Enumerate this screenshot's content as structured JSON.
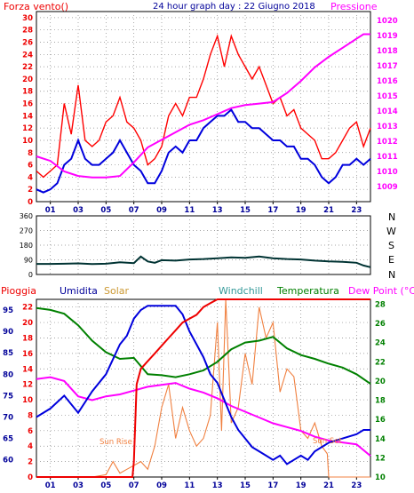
{
  "header": {
    "left_title": "Forza vento()",
    "center_title": "24 hour graph day : 22 Giugno 2018",
    "right_title": "Pressione"
  },
  "direction_labels": [
    "N",
    "W",
    "S",
    "E",
    "N"
  ],
  "bottom_labels": {
    "pioggia": "Pioggia",
    "umidita": "Umidita",
    "solar": "Solar",
    "windchill": "Windchill",
    "temperatura": "Temperatura",
    "dew_point": "Dew Point (°C)",
    "sun_rise": "Sun Rise",
    "sun_set": "Sun Set"
  },
  "colors": {
    "wind": "#ff0000",
    "wind_avg": "#0000dd",
    "pressure": "#ff00ff",
    "direction": "#003333",
    "humidity": "#0000dd",
    "solar": "#f08040",
    "rain": "#ee0000",
    "temperature": "#008000",
    "dew_point": "#ff00ff",
    "title_blue": "#000099",
    "grid": "#888888"
  },
  "chart_data": [
    {
      "type": "line",
      "name": "wind_and_pressure",
      "x_ticks": [
        "01",
        "03",
        "05",
        "07",
        "09",
        "11",
        "13",
        "15",
        "17",
        "19",
        "21",
        "23"
      ],
      "x_range": [
        0,
        24
      ],
      "left_axis": {
        "ylim": [
          0,
          31
        ],
        "ticks": [
          0,
          2,
          4,
          6,
          8,
          10,
          12,
          14,
          16,
          18,
          20,
          22,
          24,
          26,
          28,
          30
        ]
      },
      "right_axis": {
        "ylim": [
          1008,
          1020.6
        ],
        "ticks": [
          1009,
          1010,
          1011,
          1012,
          1013,
          1014,
          1015,
          1016,
          1017,
          1018,
          1019,
          1020
        ]
      },
      "series": [
        {
          "key": "wind_gust",
          "axis": "left",
          "x": [
            0,
            0.5,
            1,
            1.5,
            2,
            2.5,
            3,
            3.5,
            4,
            4.5,
            5,
            5.5,
            6,
            6.5,
            7,
            7.5,
            8,
            8.5,
            9,
            9.5,
            10,
            10.5,
            11,
            11.5,
            12,
            12.5,
            13,
            13.5,
            14,
            14.5,
            15,
            15.5,
            16,
            16.5,
            17,
            17.5,
            18,
            18.5,
            19,
            19.5,
            20,
            20.5,
            21,
            21.5,
            22,
            22.5,
            23,
            23.5,
            24
          ],
          "values": [
            5,
            4,
            5,
            6,
            16,
            11,
            19,
            10,
            9,
            10,
            13,
            14,
            17,
            13,
            12,
            10,
            6,
            7,
            9,
            14,
            16,
            14,
            17,
            17,
            20,
            24,
            27,
            22,
            27,
            24,
            22,
            20,
            22,
            19,
            16,
            17,
            14,
            15,
            12,
            11,
            10,
            7,
            7,
            8,
            10,
            12,
            13,
            9,
            12
          ]
        },
        {
          "key": "wind_avg",
          "axis": "left",
          "x": [
            0,
            0.5,
            1,
            1.5,
            2,
            2.5,
            3,
            3.5,
            4,
            4.5,
            5,
            5.5,
            6,
            6.5,
            7,
            7.5,
            8,
            8.5,
            9,
            9.5,
            10,
            10.5,
            11,
            11.5,
            12,
            12.5,
            13,
            13.5,
            14,
            14.5,
            15,
            15.5,
            16,
            16.5,
            17,
            17.5,
            18,
            18.5,
            19,
            19.5,
            20,
            20.5,
            21,
            21.5,
            22,
            22.5,
            23,
            23.5,
            24
          ],
          "values": [
            2,
            1.5,
            2,
            3,
            6,
            7,
            10,
            7,
            6,
            6,
            7,
            8,
            10,
            8,
            6,
            5,
            3,
            3,
            5,
            8,
            9,
            8,
            10,
            10,
            12,
            13,
            14,
            14,
            15,
            13,
            13,
            12,
            12,
            11,
            10,
            10,
            9,
            9,
            7,
            7,
            6,
            4,
            3,
            4,
            6,
            6,
            7,
            6,
            7
          ]
        },
        {
          "key": "pressure",
          "axis": "right",
          "x": [
            0,
            1,
            2,
            3,
            4,
            5,
            6,
            7,
            8,
            9,
            10,
            11,
            12,
            13,
            14,
            15,
            16,
            17,
            18,
            19,
            20,
            21,
            22,
            23,
            23.5,
            24
          ],
          "values": [
            1011,
            1010.7,
            1010,
            1009.7,
            1009.6,
            1009.6,
            1009.7,
            1010.6,
            1011.6,
            1012.1,
            1012.6,
            1013.1,
            1013.4,
            1013.8,
            1014.2,
            1014.4,
            1014.5,
            1014.6,
            1015.2,
            1016.0,
            1016.9,
            1017.6,
            1018.2,
            1018.8,
            1019.1,
            1019.1
          ]
        }
      ]
    },
    {
      "type": "line",
      "name": "wind_direction",
      "x_range": [
        0,
        24
      ],
      "ylim": [
        0,
        360
      ],
      "ticks": [
        0,
        90,
        180,
        270,
        360
      ],
      "series": [
        {
          "key": "direction",
          "x": [
            0,
            1,
            2,
            3,
            4,
            5,
            6,
            7,
            7.5,
            8,
            8.5,
            9,
            10,
            11,
            12,
            13,
            14,
            15,
            16,
            17,
            18,
            19,
            20,
            21,
            22,
            23,
            23.5,
            24
          ],
          "values": [
            65,
            65,
            66,
            68,
            64,
            66,
            75,
            70,
            110,
            80,
            72,
            88,
            85,
            92,
            95,
            100,
            105,
            102,
            110,
            100,
            95,
            92,
            85,
            80,
            78,
            72,
            55,
            45
          ]
        }
      ]
    },
    {
      "type": "line",
      "name": "weather",
      "x_range": [
        0,
        24
      ],
      "axes": {
        "humidity": {
          "ylim": [
            56,
            97.5
          ],
          "ticks": [
            60,
            65,
            70,
            75,
            80,
            85,
            90,
            95
          ]
        },
        "rain": {
          "ylim": [
            0,
            23
          ],
          "ticks": [
            0,
            2,
            4,
            6,
            8,
            10,
            12,
            14,
            16,
            18,
            20,
            22
          ]
        },
        "temperature": {
          "ylim": [
            10,
            28.5
          ],
          "ticks": [
            10,
            12,
            14,
            16,
            18,
            20,
            22,
            24,
            26,
            28
          ]
        }
      },
      "series": [
        {
          "key": "humidity",
          "axis": "humidity",
          "x": [
            0,
            1,
            2,
            3,
            4,
            5,
            6,
            6.5,
            7,
            7.5,
            8,
            8.5,
            9,
            10,
            10.5,
            11,
            11.5,
            12,
            12.5,
            13,
            13.5,
            14,
            14.5,
            15,
            15.5,
            16,
            16.5,
            17,
            17.5,
            18,
            18.5,
            19,
            19.5,
            20,
            21,
            22,
            23,
            23.5,
            24
          ],
          "values": [
            70,
            72,
            75,
            71,
            76,
            80,
            87,
            89,
            93,
            95,
            96,
            96,
            96,
            96,
            94,
            90,
            87,
            84,
            80,
            78,
            74,
            70,
            67,
            65,
            63,
            62,
            61,
            60,
            61,
            59,
            60,
            61,
            60,
            62,
            64,
            65,
            66,
            67,
            67
          ]
        },
        {
          "key": "rain",
          "axis": "rain",
          "x": [
            0,
            5,
            6.9,
            7,
            7.2,
            7.5,
            8,
            8.5,
            9,
            9.5,
            10,
            10.5,
            11,
            11.5,
            12,
            12.5,
            13,
            13.5,
            24
          ],
          "values": [
            0,
            0,
            0,
            2,
            12,
            14,
            15,
            16,
            17,
            18,
            19,
            20,
            20.5,
            21,
            22,
            22.5,
            23,
            23,
            23
          ]
        },
        {
          "key": "solar",
          "axis": "rain",
          "x": [
            0,
            4,
            5,
            5.5,
            6,
            6.5,
            7,
            7.5,
            8,
            8.5,
            9,
            9.5,
            10,
            10.5,
            11,
            11.5,
            12,
            12.5,
            13,
            13.3,
            13.6,
            14,
            14.5,
            15,
            15.5,
            16,
            16.5,
            17,
            17.5,
            18,
            18.5,
            19,
            19.5,
            20,
            20.5,
            20.9,
            21,
            24
          ],
          "values": [
            0,
            0,
            0.3,
            2,
            0.5,
            1,
            1.5,
            2,
            1,
            4,
            9,
            12,
            5,
            9,
            6,
            4,
            5,
            8,
            20,
            6,
            23,
            7,
            9,
            16,
            12,
            22,
            18,
            20,
            11,
            14,
            13,
            6,
            5,
            7,
            4,
            3,
            0,
            0
          ]
        },
        {
          "key": "temperature",
          "axis": "temperature",
          "x": [
            0,
            1,
            2,
            3,
            4,
            5,
            6,
            7,
            8,
            9,
            10,
            11,
            12,
            13,
            14,
            15,
            16,
            17,
            18,
            19,
            20,
            21,
            22,
            23,
            24
          ],
          "values": [
            27.6,
            27.4,
            27.0,
            25.8,
            24.2,
            23.0,
            22.3,
            22.4,
            20.7,
            20.6,
            20.4,
            20.7,
            21.1,
            22.0,
            23.3,
            24.0,
            24.2,
            24.6,
            23.4,
            22.7,
            22.3,
            21.8,
            21.4,
            20.7,
            19.7
          ]
        },
        {
          "key": "dew_point",
          "axis": "temperature",
          "x": [
            0,
            1,
            2,
            3,
            4,
            5,
            6,
            7,
            8,
            9,
            10,
            11,
            12,
            13,
            14,
            15,
            16,
            17,
            18,
            19,
            20,
            21,
            22,
            23,
            24
          ],
          "values": [
            20.2,
            20.4,
            20.0,
            18.4,
            18.0,
            18.4,
            18.6,
            19.0,
            19.4,
            19.6,
            19.8,
            19.2,
            18.8,
            18.2,
            17.4,
            16.8,
            16.2,
            15.6,
            15.2,
            14.8,
            14.2,
            13.8,
            13.6,
            13.4,
            12.2
          ]
        }
      ]
    }
  ]
}
